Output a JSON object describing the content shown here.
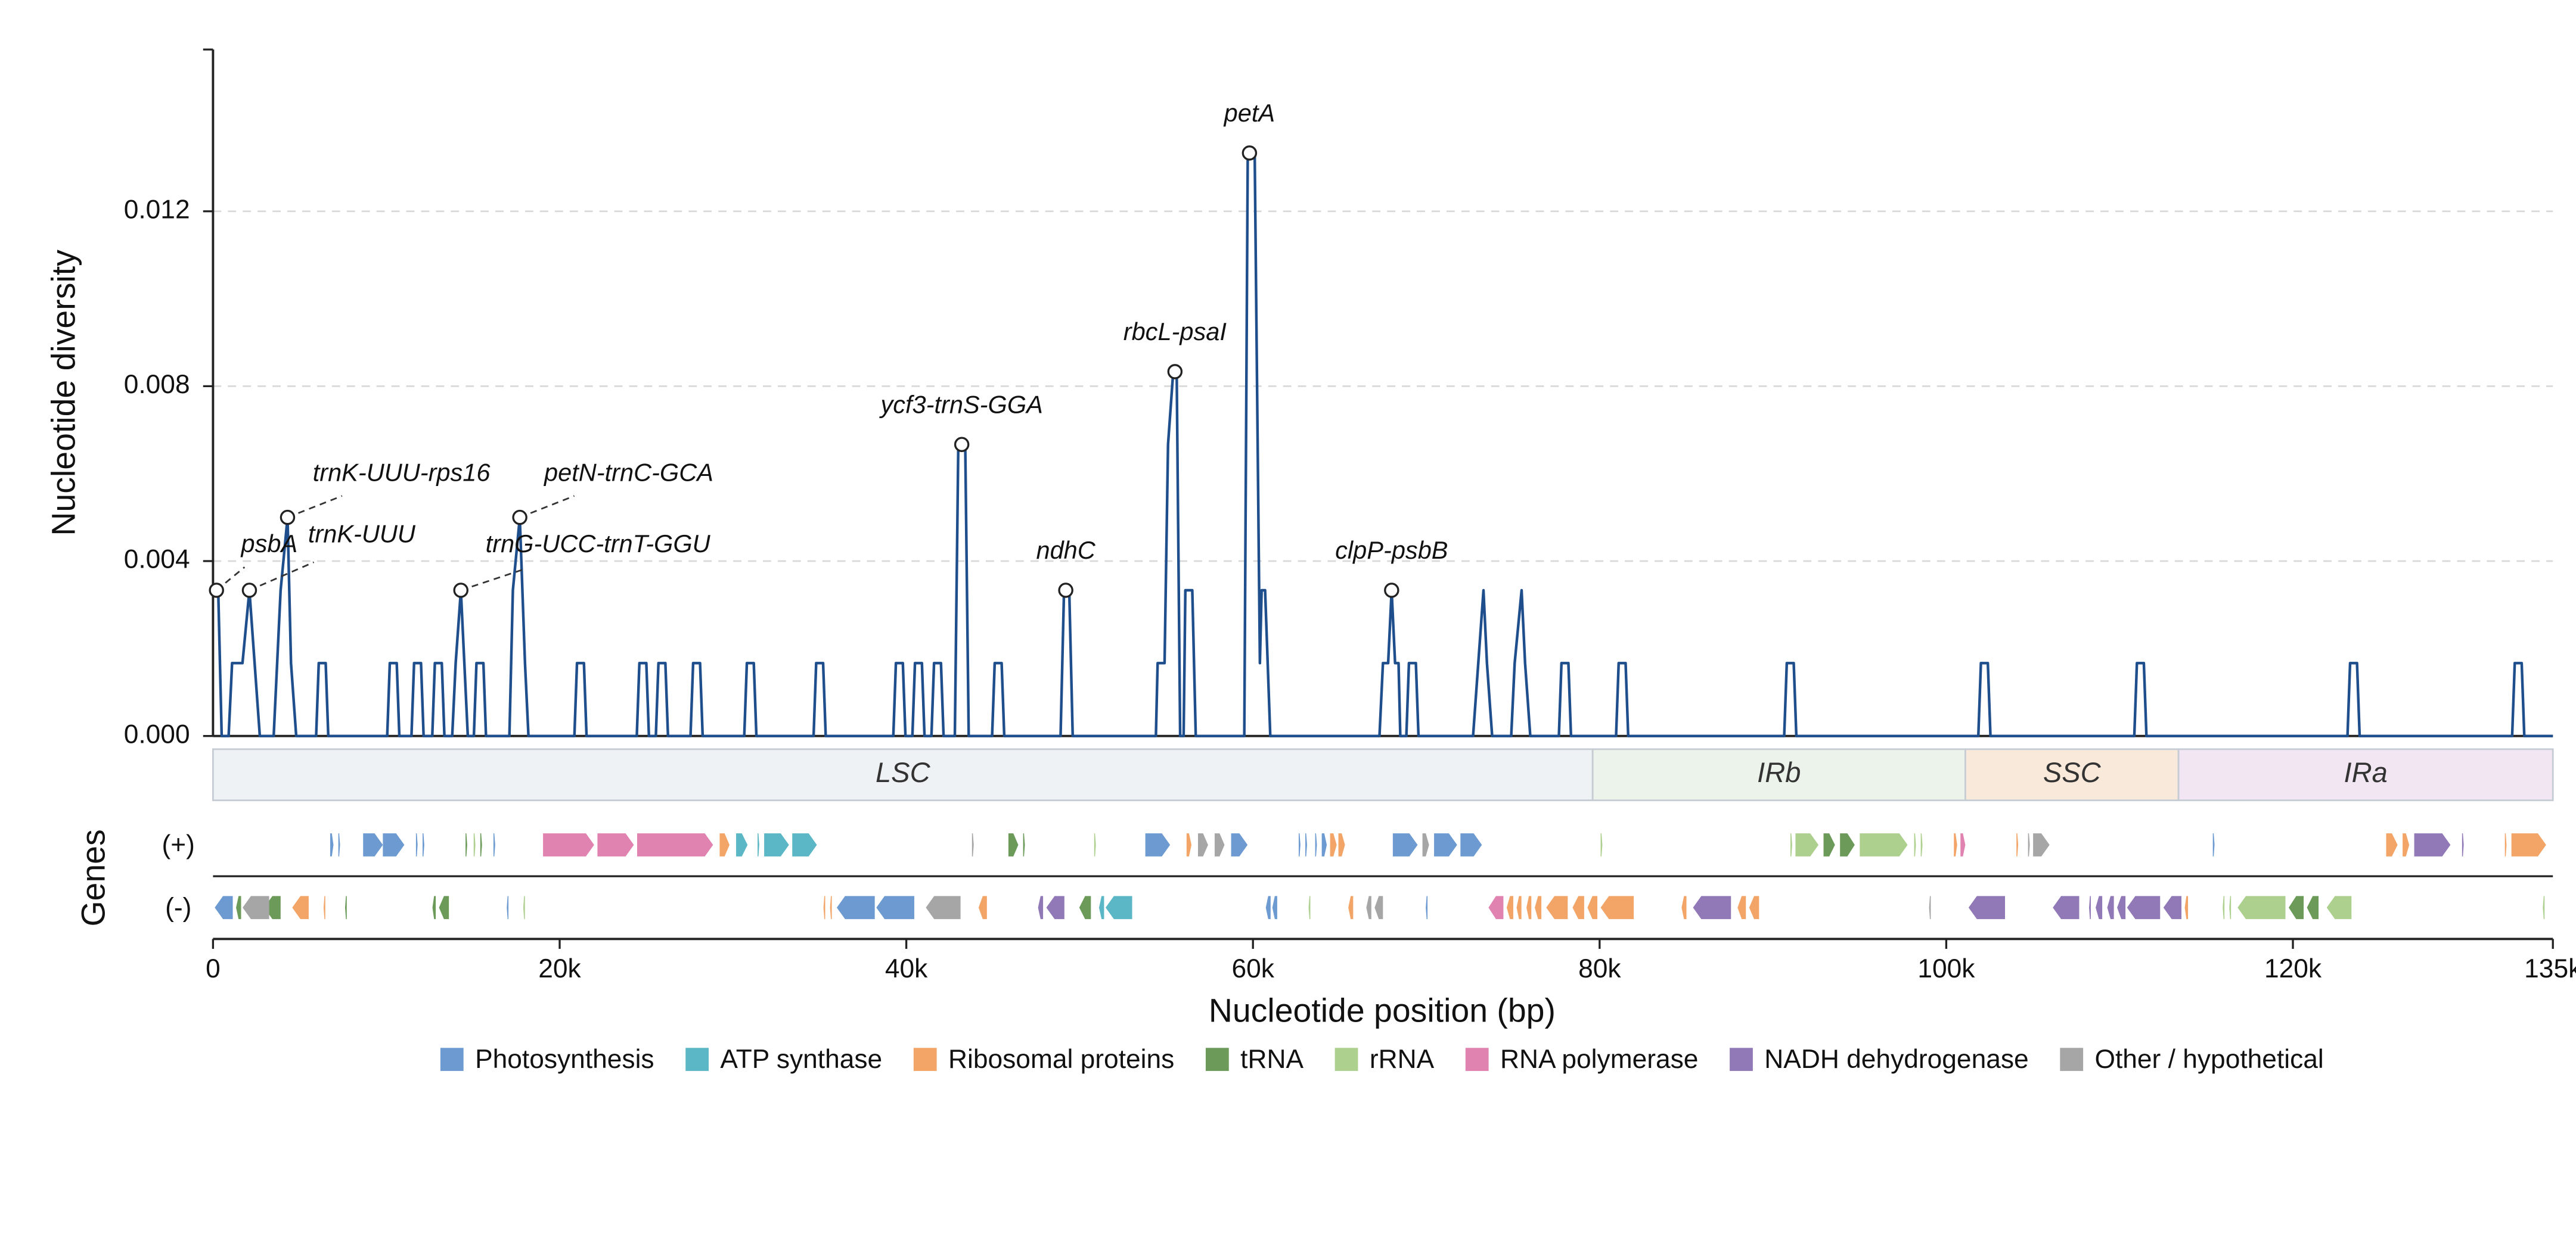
{
  "chart_data": {
    "type": "line",
    "y_label": "Nucleotide diversity",
    "x_label": "Nucleotide position (bp)",
    "line_color": "#1f4e8c",
    "xlim": [
      0,
      135000
    ],
    "xticks": [
      0,
      {
        "value": 20000,
        "label": "20k"
      },
      {
        "value": 40000,
        "label": "40k"
      },
      {
        "value": 60000,
        "label": "60k"
      },
      {
        "value": 80000,
        "label": "80k"
      },
      {
        "value": 100000,
        "label": "100k"
      },
      {
        "value": 120000,
        "label": "120k"
      },
      {
        "value": 135000,
        "label": "135k"
      }
    ],
    "ylim": [
      0,
      0.0157
    ],
    "yticks": [
      {
        "value": 0,
        "label": "0.000"
      },
      0.004,
      0.008,
      0.012
    ],
    "grid": true,
    "x": [
      0,
      300,
      500,
      900,
      1100,
      1700,
      2100,
      2400,
      2700,
      3500,
      3700,
      3900,
      4300,
      4500,
      4800,
      5950,
      6100,
      6500,
      6650,
      10050,
      10200,
      10600,
      10750,
      11450,
      11600,
      12000,
      12150,
      12650,
      12800,
      13200,
      13350,
      13800,
      14000,
      14300,
      14500,
      14700,
      15050,
      15200,
      15600,
      15750,
      17100,
      17300,
      17700,
      18000,
      18200,
      20850,
      21000,
      21400,
      21550,
      24450,
      24600,
      25000,
      25150,
      25550,
      25700,
      26100,
      26250,
      27550,
      27700,
      28100,
      28250,
      30650,
      30800,
      31200,
      31350,
      34650,
      34800,
      35200,
      35350,
      39250,
      39400,
      39800,
      39950,
      40350,
      40500,
      40900,
      41050,
      41450,
      41600,
      42000,
      42150,
      42800,
      43000,
      43400,
      43600,
      44950,
      45100,
      45500,
      45650,
      48900,
      49100,
      49400,
      49600,
      54400,
      54500,
      54900,
      55100,
      55400,
      55600,
      55800,
      56000,
      56100,
      56500,
      56700,
      59500,
      59700,
      60100,
      60400,
      60500,
      60700,
      61000,
      67300,
      67500,
      67800,
      68000,
      68200,
      68400,
      68500,
      68850,
      69000,
      69400,
      69550,
      72700,
      73000,
      73300,
      73500,
      73800,
      74900,
      75100,
      75500,
      75700,
      76000,
      77650,
      77800,
      78200,
      78350,
      80950,
      81100,
      81500,
      81650,
      90650,
      90800,
      91200,
      91350,
      101850,
      102000,
      102400,
      102550,
      110850,
      111000,
      111400,
      111550,
      123150,
      123300,
      123700,
      123850,
      132650,
      132800,
      133200,
      133350,
      135000
    ],
    "values": [
      0.003333,
      0.003333,
      0,
      0,
      0.001667,
      0.001667,
      0.003333,
      0.001667,
      0,
      0,
      0.001667,
      0.003333,
      0.005,
      0.001667,
      0,
      0,
      0.001667,
      0.001667,
      0,
      0,
      0.001667,
      0.001667,
      0,
      0,
      0.001667,
      0.001667,
      0,
      0,
      0.001667,
      0.001667,
      0,
      0,
      0.001667,
      0.003333,
      0.001667,
      0,
      0,
      0.001667,
      0.001667,
      0,
      0,
      0.003333,
      0.005,
      0.001667,
      0,
      0,
      0.001667,
      0.001667,
      0,
      0,
      0.001667,
      0.001667,
      0,
      0,
      0.001667,
      0.001667,
      0,
      0,
      0.001667,
      0.001667,
      0,
      0,
      0.001667,
      0.001667,
      0,
      0,
      0.001667,
      0.001667,
      0,
      0,
      0.001667,
      0.001667,
      0,
      0,
      0.001667,
      0.001667,
      0,
      0,
      0.001667,
      0.001667,
      0,
      0,
      0.006667,
      0.006667,
      0,
      0,
      0.001667,
      0.001667,
      0,
      0,
      0.003333,
      0.003333,
      0,
      0,
      0.001667,
      0.001667,
      0.006667,
      0.008333,
      0.008333,
      0,
      0,
      0.003333,
      0.003333,
      0,
      0,
      0.013333,
      0.013333,
      0.001667,
      0.003333,
      0.003333,
      0,
      0,
      0.001667,
      0.001667,
      0.003333,
      0.001667,
      0.001667,
      0,
      0,
      0.001667,
      0.001667,
      0,
      0,
      0.001667,
      0.003333,
      0.001667,
      0,
      0,
      0.001667,
      0.003333,
      0.001667,
      0,
      0,
      0.001667,
      0.001667,
      0,
      0,
      0.001667,
      0.001667,
      0,
      0,
      0.001667,
      0.001667,
      0,
      0,
      0.001667,
      0.001667,
      0,
      0,
      0.001667,
      0.001667,
      0,
      0,
      0.001667,
      0.001667,
      0,
      0,
      0.001667,
      0.001667,
      0,
      0
    ],
    "annotations": [
      {
        "label": "psbA",
        "x": 200,
        "y": 0.003333
      },
      {
        "label": "trnK-UUU",
        "x": 2100,
        "y": 0.003333
      },
      {
        "label": "trnK-UUU-rps16",
        "x": 4300,
        "y": 0.005
      },
      {
        "label": "trnG-UCC-trnT-GGU",
        "x": 14300,
        "y": 0.003333
      },
      {
        "label": "petN-trnC-GCA",
        "x": 17700,
        "y": 0.005
      },
      {
        "label": "ycf3-trnS-GGA",
        "x": 43200,
        "y": 0.006667
      },
      {
        "label": "ndhC",
        "x": 49200,
        "y": 0.003333
      },
      {
        "label": "rbcL-psaI",
        "x": 55500,
        "y": 0.008333
      },
      {
        "label": "petA",
        "x": 59800,
        "y": 0.013333
      },
      {
        "label": "clpP-psbB",
        "x": 68000,
        "y": 0.003333
      }
    ],
    "regions": [
      {
        "name": "LSC",
        "start": 0,
        "end": 79600,
        "color": "#eef2f5"
      },
      {
        "name": "IRb",
        "start": 79600,
        "end": 101100,
        "color": "#ecf3ea"
      },
      {
        "name": "SSC",
        "start": 101100,
        "end": 113400,
        "color": "#f8e9db"
      },
      {
        "name": "IRa",
        "start": 113400,
        "end": 135000,
        "color": "#f1e6f1"
      }
    ],
    "genes_label": "Genes",
    "strand_labels": {
      "plus": "(+)",
      "minus": "(-)"
    },
    "categories": [
      {
        "name": "Photosynthesis",
        "color": "#6d9bd1"
      },
      {
        "name": "ATP synthase",
        "color": "#5bb6c6"
      },
      {
        "name": "Ribosomal proteins",
        "color": "#f3a568"
      },
      {
        "name": "tRNA",
        "color": "#6b9a59"
      },
      {
        "name": "rRNA",
        "color": "#aed08f"
      },
      {
        "name": "RNA polymerase",
        "color": "#e083b0"
      },
      {
        "name": "NADH dehydrogenase",
        "color": "#9179b7"
      },
      {
        "name": "Other / hypothetical",
        "color": "#a6a6a6"
      }
    ],
    "genes": {
      "plus": [
        {
          "category": "Photosynthesis",
          "spans": [
            [
              6760,
              6950
            ],
            [
              7230,
              7330
            ],
            [
              8660,
              9800
            ],
            [
              9800,
              11040
            ],
            [
              11710,
              11800
            ],
            [
              12090,
              12190
            ],
            [
              16180,
              16280
            ],
            [
              53790,
              55220
            ],
            [
              58740,
              59690
            ],
            [
              62640,
              62740
            ],
            [
              63020,
              63120
            ],
            [
              63590,
              63690
            ],
            [
              63970,
              64260
            ],
            [
              68070,
              69500
            ],
            [
              70450,
              71780
            ],
            [
              71970,
              73210
            ],
            [
              115380,
              115480
            ]
          ]
        },
        {
          "category": "ATP synthase",
          "spans": [
            [
              30180,
              30840
            ],
            [
              31420,
              31510
            ],
            [
              31800,
              33230
            ],
            [
              33420,
              34840
            ]
          ]
        },
        {
          "category": "Ribosomal proteins",
          "spans": [
            [
              29230,
              29800
            ],
            [
              56170,
              56450
            ],
            [
              64450,
              64830
            ],
            [
              64930,
              65310
            ],
            [
              100440,
              100630
            ],
            [
              104050,
              104150
            ],
            [
              125380,
              126040
            ],
            [
              126330,
              126710
            ],
            [
              132230,
              132320
            ],
            [
              132610,
              134610
            ]
          ]
        },
        {
          "category": "tRNA",
          "spans": [
            [
              14570,
              14660
            ],
            [
              15420,
              15520
            ],
            [
              45890,
              46460
            ],
            [
              46740,
              46840
            ],
            [
              92920,
              93580
            ],
            [
              93870,
              94720
            ]
          ]
        },
        {
          "category": "rRNA",
          "spans": [
            [
              15040,
              15140
            ],
            [
              50840,
              50930
            ],
            [
              80060,
              80160
            ],
            [
              91010,
              91110
            ],
            [
              91300,
              92630
            ],
            [
              95010,
              97770
            ],
            [
              98150,
              98250
            ],
            [
              98530,
              98630
            ]
          ]
        },
        {
          "category": "RNA polymerase",
          "spans": [
            [
              19040,
              21990
            ],
            [
              22180,
              24280
            ],
            [
              24470,
              28850
            ],
            [
              100820,
              101100
            ]
          ]
        },
        {
          "category": "NADH dehydrogenase",
          "spans": [
            [
              127000,
              129090
            ],
            [
              129760,
              129850
            ]
          ]
        },
        {
          "category": "Other / hypothetical",
          "spans": [
            [
              43790,
              43890
            ],
            [
              56830,
              57410
            ],
            [
              57790,
              58360
            ],
            [
              69780,
              70160
            ],
            [
              104720,
              104820
            ],
            [
              105010,
              105960
            ]
          ]
        }
      ],
      "minus": [
        {
          "category": "Photosynthesis",
          "spans": [
            [
              100,
              1140
            ],
            [
              16950,
              17040
            ],
            [
              35990,
              38180
            ],
            [
              38270,
              40460
            ],
            [
              60740,
              61020
            ],
            [
              61120,
              61400
            ],
            [
              69970,
              70070
            ]
          ]
        },
        {
          "category": "ATP synthase",
          "spans": [
            [
              51120,
              51410
            ],
            [
              51500,
              53030
            ]
          ]
        },
        {
          "category": "Ribosomal proteins",
          "spans": [
            [
              4570,
              5520
            ],
            [
              6380,
              6470
            ],
            [
              35220,
              35320
            ],
            [
              35600,
              35700
            ],
            [
              44170,
              44650
            ],
            [
              65500,
              65780
            ],
            [
              74640,
              75020
            ],
            [
              75210,
              75490
            ],
            [
              75780,
              76060
            ],
            [
              76260,
              76640
            ],
            [
              76920,
              78160
            ],
            [
              78440,
              79110
            ],
            [
              79300,
              79870
            ],
            [
              80060,
              81970
            ],
            [
              84730,
              85010
            ],
            [
              87960,
              88440
            ],
            [
              88630,
              89200
            ],
            [
              113760,
              113950
            ]
          ]
        },
        {
          "category": "tRNA",
          "spans": [
            [
              1330,
              1620
            ],
            [
              2950,
              3900
            ],
            [
              7620,
              7710
            ],
            [
              12660,
              12850
            ],
            [
              13040,
              13610
            ],
            [
              49980,
              50650
            ],
            [
              119760,
              120620
            ],
            [
              120810,
              121480
            ]
          ]
        },
        {
          "category": "rRNA",
          "spans": [
            [
              17900,
              17990
            ],
            [
              63210,
              63310
            ],
            [
              115950,
              116050
            ],
            [
              116330,
              116430
            ],
            [
              116810,
              119570
            ],
            [
              121950,
              123380
            ],
            [
              134420,
              134520
            ]
          ]
        },
        {
          "category": "RNA polymerase",
          "spans": [
            [
              73590,
              74450
            ]
          ]
        },
        {
          "category": "NADH dehydrogenase",
          "spans": [
            [
              47600,
              47890
            ],
            [
              48080,
              49120
            ],
            [
              85390,
              87580
            ],
            [
              101290,
              103390
            ],
            [
              106150,
              107670
            ],
            [
              108240,
              108340
            ],
            [
              108620,
              109000
            ],
            [
              109290,
              109670
            ],
            [
              109860,
              110340
            ],
            [
              110430,
              112340
            ],
            [
              112530,
              113570
            ]
          ]
        },
        {
          "category": "Other / hypothetical",
          "spans": [
            [
              1710,
              3240
            ],
            [
              41130,
              43130
            ],
            [
              66540,
              66830
            ],
            [
              67020,
              67500
            ],
            [
              99010,
              99100
            ]
          ]
        }
      ]
    }
  }
}
